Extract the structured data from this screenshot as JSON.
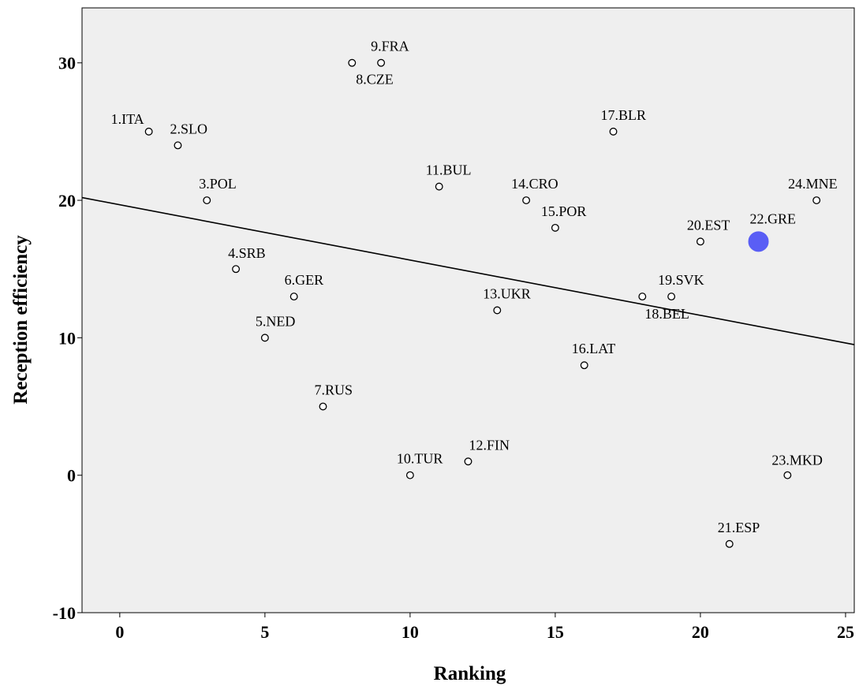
{
  "chart_data": {
    "type": "scatter",
    "xlabel": "Ranking",
    "ylabel": "Reception efficiency",
    "xlim": [
      -1.3,
      25.3
    ],
    "ylim": [
      -10,
      34
    ],
    "xticks": [
      0,
      5,
      10,
      15,
      20,
      25
    ],
    "yticks": [
      -10,
      0,
      10,
      20,
      30
    ],
    "grid": false,
    "background": "#efefef",
    "marker_color": "#000000",
    "highlight_color": "#5a5ef5",
    "points": [
      {
        "x": 1,
        "y": 25,
        "label": "1.ITA",
        "anchor": "end",
        "dx": -6,
        "dy": -10
      },
      {
        "x": 2,
        "y": 24,
        "label": "2.SLO",
        "anchor": "start",
        "dx": -10,
        "dy": -15
      },
      {
        "x": 3,
        "y": 20,
        "label": "3.POL",
        "anchor": "start",
        "dx": -10,
        "dy": -15
      },
      {
        "x": 4,
        "y": 15,
        "label": "4.SRB",
        "anchor": "start",
        "dx": -10,
        "dy": -14
      },
      {
        "x": 5,
        "y": 10,
        "label": "5.NED",
        "anchor": "start",
        "dx": -12,
        "dy": -15
      },
      {
        "x": 6,
        "y": 13,
        "label": "6.GER",
        "anchor": "start",
        "dx": -12,
        "dy": -15
      },
      {
        "x": 7,
        "y": 5,
        "label": "7.RUS",
        "anchor": "start",
        "dx": -11,
        "dy": -15
      },
      {
        "x": 8,
        "y": 30,
        "label": "8.CZE",
        "anchor": "start",
        "dx": 5,
        "dy": 27
      },
      {
        "x": 9,
        "y": 30,
        "label": "9.FRA",
        "anchor": "start",
        "dx": -13,
        "dy": -15
      },
      {
        "x": 10,
        "y": 0,
        "label": "10.TUR",
        "anchor": "start",
        "dx": -17,
        "dy": -15
      },
      {
        "x": 11,
        "y": 21,
        "label": "11.BUL",
        "anchor": "start",
        "dx": -17,
        "dy": -15
      },
      {
        "x": 12,
        "y": 1,
        "label": "12.FIN",
        "anchor": "start",
        "dx": 1,
        "dy": -15
      },
      {
        "x": 13,
        "y": 12,
        "label": "13.UKR",
        "anchor": "start",
        "dx": -18,
        "dy": -15
      },
      {
        "x": 14,
        "y": 20,
        "label": "14.CRO",
        "anchor": "start",
        "dx": -19,
        "dy": -15
      },
      {
        "x": 15,
        "y": 18,
        "label": "15.POR",
        "anchor": "start",
        "dx": -18,
        "dy": -15
      },
      {
        "x": 16,
        "y": 8,
        "label": "16.LAT",
        "anchor": "start",
        "dx": -16,
        "dy": -15
      },
      {
        "x": 17,
        "y": 25,
        "label": "17.BLR",
        "anchor": "start",
        "dx": -16,
        "dy": -15
      },
      {
        "x": 18,
        "y": 13,
        "label": "18.BEL",
        "anchor": "start",
        "dx": 3,
        "dy": 28
      },
      {
        "x": 19,
        "y": 13,
        "label": "19.SVK",
        "anchor": "start",
        "dx": -17,
        "dy": -15
      },
      {
        "x": 20,
        "y": 17,
        "label": "20.EST",
        "anchor": "start",
        "dx": -17,
        "dy": -15
      },
      {
        "x": 21,
        "y": -5,
        "label": "21.ESP",
        "anchor": "start",
        "dx": -15,
        "dy": -15
      },
      {
        "x": 22,
        "y": 17,
        "label": "22.GRE",
        "anchor": "start",
        "dx": -11,
        "dy": -23,
        "highlight": true
      },
      {
        "x": 23,
        "y": 0,
        "label": "23.MKD",
        "anchor": "start",
        "dx": -20,
        "dy": -13
      },
      {
        "x": 24,
        "y": 20,
        "label": "24.MNE",
        "anchor": "start",
        "dx": -36,
        "dy": -15
      }
    ],
    "fit_line": {
      "x": [
        -1.3,
        25.3
      ],
      "y": [
        20.2,
        9.5
      ]
    }
  }
}
